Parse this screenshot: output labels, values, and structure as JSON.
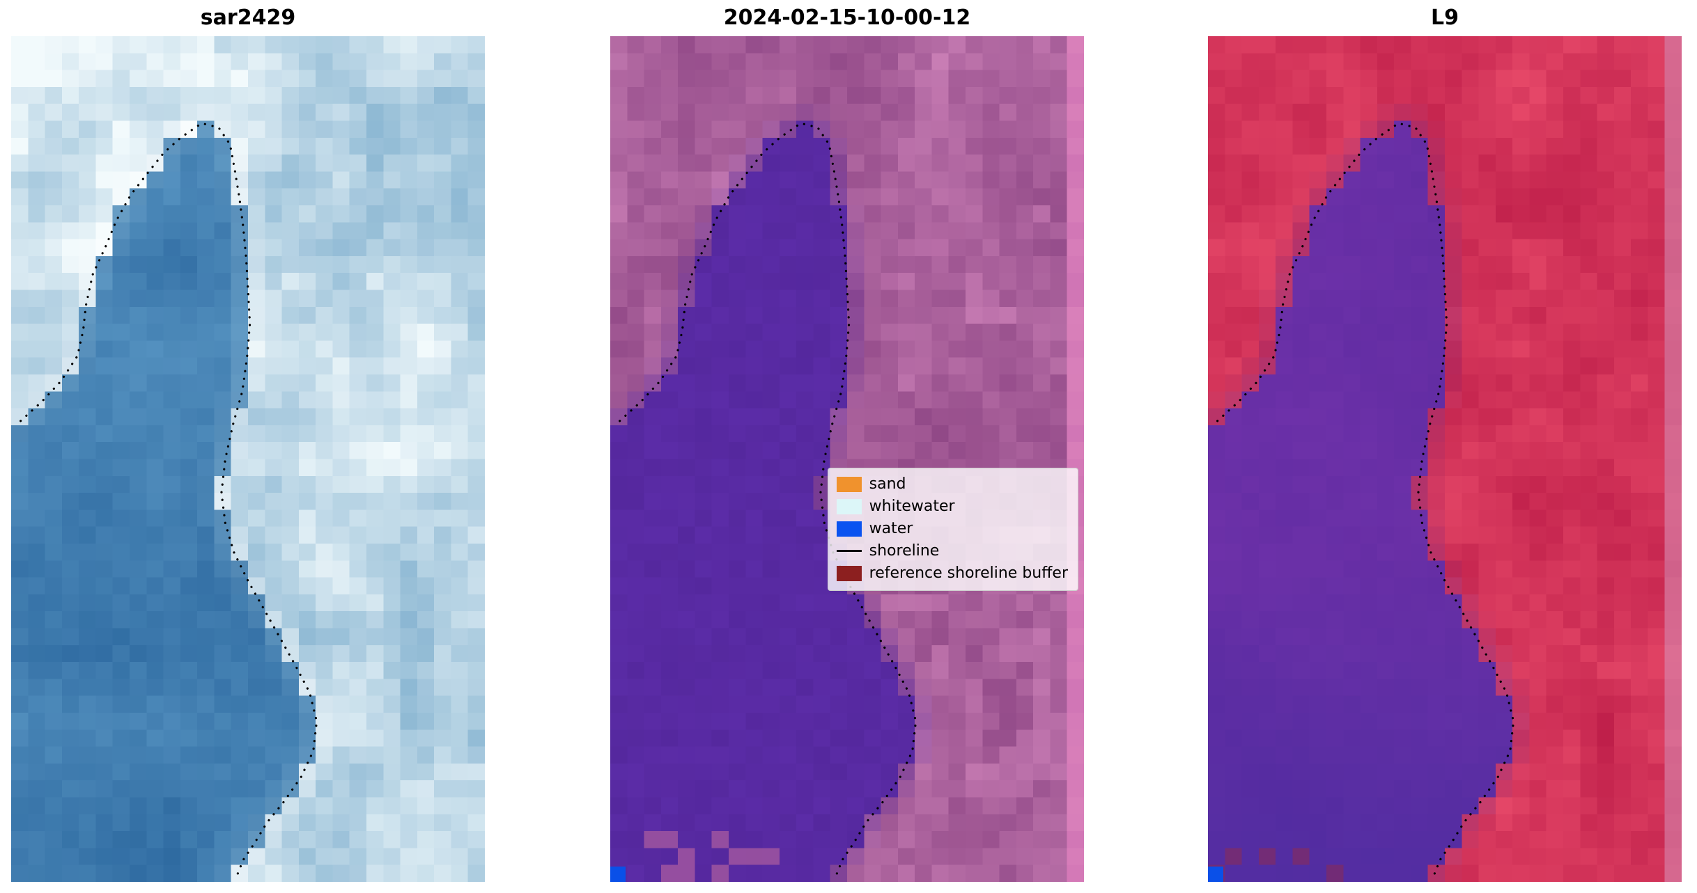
{
  "figure": {
    "background": "#ffffff"
  },
  "panels": [
    {
      "key": "sar",
      "title": "sar2429"
    },
    {
      "key": "classified",
      "title": "2024-02-15-10-00-12"
    },
    {
      "key": "l9",
      "title": "L9"
    }
  ],
  "legend": {
    "items": [
      {
        "label": "sand",
        "swatch": "patch",
        "color": "#f0922d"
      },
      {
        "label": "whitewater",
        "swatch": "patch",
        "color": "#dcf6f8"
      },
      {
        "label": "water",
        "swatch": "patch",
        "color": "#0a53f0"
      },
      {
        "label": "shoreline",
        "swatch": "line",
        "color": "#000000"
      },
      {
        "label": "reference shoreline buffer",
        "swatch": "patch",
        "color": "#8c1f1f"
      }
    ]
  },
  "shoreline": {
    "color": "#000000",
    "points": [
      [
        0.02,
        0.455
      ],
      [
        0.065,
        0.432
      ],
      [
        0.105,
        0.408
      ],
      [
        0.14,
        0.378
      ],
      [
        0.152,
        0.348
      ],
      [
        0.158,
        0.318
      ],
      [
        0.172,
        0.282
      ],
      [
        0.2,
        0.248
      ],
      [
        0.222,
        0.218
      ],
      [
        0.252,
        0.188
      ],
      [
        0.288,
        0.162
      ],
      [
        0.322,
        0.138
      ],
      [
        0.358,
        0.12
      ],
      [
        0.402,
        0.103
      ],
      [
        0.438,
        0.108
      ],
      [
        0.462,
        0.128
      ],
      [
        0.472,
        0.158
      ],
      [
        0.482,
        0.192
      ],
      [
        0.49,
        0.226
      ],
      [
        0.496,
        0.262
      ],
      [
        0.5,
        0.3
      ],
      [
        0.504,
        0.34
      ],
      [
        0.498,
        0.38
      ],
      [
        0.488,
        0.42
      ],
      [
        0.468,
        0.46
      ],
      [
        0.452,
        0.5
      ],
      [
        0.444,
        0.54
      ],
      [
        0.452,
        0.576
      ],
      [
        0.47,
        0.61
      ],
      [
        0.5,
        0.644
      ],
      [
        0.532,
        0.676
      ],
      [
        0.566,
        0.71
      ],
      [
        0.6,
        0.744
      ],
      [
        0.63,
        0.776
      ],
      [
        0.645,
        0.81
      ],
      [
        0.638,
        0.845
      ],
      [
        0.612,
        0.876
      ],
      [
        0.576,
        0.905
      ],
      [
        0.54,
        0.93
      ],
      [
        0.514,
        0.954
      ],
      [
        0.49,
        0.974
      ],
      [
        0.477,
        0.992
      ]
    ]
  },
  "corner_marker_color": "#0a50e8",
  "palette": {
    "sar": {
      "water_dark": "#2c689f",
      "water_light": "#5f9cc8",
      "land_dark": "#8ab6d2",
      "land_light": "#f2fafc",
      "shore_white": "#ffffff"
    },
    "classified": {
      "water_a": "#55289e",
      "water_b": "#6130b0",
      "land_dark": "#8d4584",
      "land_light": "#c87eb4",
      "edge_strip": "#d980ba",
      "blotch": "#a85a9e"
    },
    "l9": {
      "water_a": "#5c2aa0",
      "water_b": "#7434ac",
      "water_deep": "#432b9e",
      "land_dark": "#bf1f4a",
      "land_light": "#e84a6a",
      "shore_mix": "#93347e",
      "edge_strip": "#d587b0"
    }
  }
}
